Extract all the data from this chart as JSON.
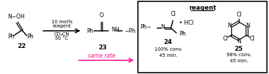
{
  "bg_color": "#ffffff",
  "box_color": "#000000",
  "text_color": "#000000",
  "pink_color": "#ff1493",
  "figsize": [
    3.92,
    1.08
  ],
  "dpi": 100,
  "compound22_label": "22",
  "compound23_label": "23",
  "compound24_label": "24",
  "compound25_label": "25",
  "arrow1_label_top": "10 mol%",
  "arrow1_label_mid": "reagent",
  "arrow1_label_bot1": "CD₃CN",
  "arrow1_label_bot2": "50 °C",
  "same_rate_text": "same rate",
  "reagent_header": "reagent",
  "conv24_line1": "100% conv.",
  "conv24_line2": "45 min.",
  "conv25_line1": "98% conv.",
  "conv25_line2": "45 min.",
  "struct22_noh": "N−OH",
  "struct22_ph1": "Ph",
  "struct22_ph2": "Ph",
  "struct23_o": "O",
  "struct23_ph": "Ph",
  "struct23_nh": "NH",
  "struct24_cl": "Cl",
  "struct24_hcl": "• HCl",
  "struct24_ph1": "Ph−",
  "struct24_n": "N",
  "struct24_ph2": "Ph",
  "struct25_cl_top": "Cl",
  "struct25_n_tr": "N",
  "struct25_n_tl": "N",
  "struct25_cl_left": "Cl",
  "struct25_n_bot": "N",
  "struct25_cl_right": "Cl"
}
